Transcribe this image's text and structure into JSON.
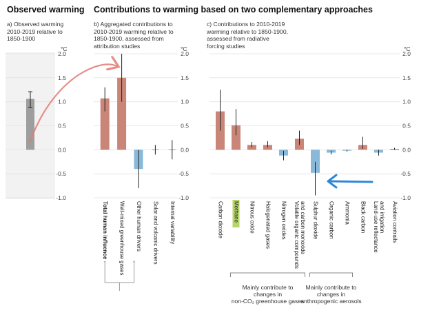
{
  "headers": {
    "observed": "Observed warming",
    "contributions": "Contributions to warming based on two complementary approaches"
  },
  "panels": {
    "a": {
      "subtitle": [
        "a) Observed warming",
        "2010-2019 relative to",
        "1850-1900"
      ]
    },
    "b": {
      "subtitle": [
        "b) Aggregated contributions to",
        "2010-2019 warming relative to",
        "1850-1900, assessed from",
        "attribution studies"
      ]
    },
    "c": {
      "subtitle": [
        "c) Contributions to 2010-2019",
        "warming relative to 1850-1900,",
        "assessed from radiative",
        "forcing studies"
      ]
    }
  },
  "axis": {
    "unit": "°C",
    "ticks": [
      "2.0",
      "1.5",
      "1.0",
      "0.5",
      "0.0",
      "-0.5",
      "-1.0"
    ]
  },
  "colors": {
    "observed": "#9e9e9e",
    "warming": "#c98577",
    "cooling": "#8ab8d8",
    "grid": "#e3e3e3",
    "annotation_red": "#e27b73",
    "annotation_blue": "#2f87d8",
    "highlight": "#a9cf4f",
    "panel_bg": "#f2f2f2"
  },
  "annotations": {
    "highlighted_label": "Methane",
    "red_arrow": "from observed warming bar to well-mixed greenhouse gases bar",
    "blue_arrow": "pointing to sulphur dioxide"
  },
  "brackets": {
    "ghg": [
      "Mainly contribute to",
      "changes in",
      "non-CO₂ greenhouse gases"
    ],
    "aerosols": [
      "Mainly contribute to",
      "changes in",
      "anthropogenic aerosols"
    ]
  },
  "chart_data": [
    {
      "type": "bar",
      "ylim": [
        -1.0,
        2.0
      ],
      "categories": [
        ""
      ],
      "series": [
        {
          "values": [
            1.06
          ],
          "err_low": [
            0.88
          ],
          "err_high": [
            1.21
          ]
        }
      ]
    },
    {
      "type": "bar",
      "ylim": [
        -1.0,
        2.0
      ],
      "categories": [
        "Total human influence",
        "Well-mixed greenhouse gases",
        "Other human drivers",
        "Solar and volcanic drivers",
        "Internal variability"
      ],
      "series": [
        {
          "values": [
            1.07,
            1.5,
            -0.4,
            0.0,
            0.0
          ],
          "err_low": [
            0.8,
            1.0,
            -0.8,
            -0.1,
            -0.2
          ],
          "err_high": [
            1.3,
            2.0,
            0.0,
            0.1,
            0.2
          ]
        }
      ]
    },
    {
      "type": "bar",
      "ylim": [
        -1.0,
        2.0
      ],
      "categories": [
        "Carbon dioxide",
        "Methane",
        "Nitrous oxide",
        "Halogenated gases",
        "Nitrogen oxides",
        "Volatile organic compounds and carbon monoxide",
        "Sulphur dioxide",
        "Organic carbon",
        "Ammonia",
        "Black carbon",
        "Land-use reflectance and irrigation",
        "Aviation contrails"
      ],
      "series": [
        {
          "values": [
            0.8,
            0.51,
            0.1,
            0.1,
            -0.12,
            0.23,
            -0.48,
            -0.06,
            -0.02,
            0.1,
            -0.06,
            0.02
          ],
          "err_low": [
            0.4,
            0.3,
            0.05,
            0.05,
            -0.22,
            0.1,
            -0.95,
            -0.1,
            -0.04,
            0.02,
            -0.12,
            0.0
          ],
          "err_high": [
            1.25,
            0.85,
            0.16,
            0.18,
            -0.02,
            0.4,
            -0.25,
            -0.02,
            0.0,
            0.27,
            0.0,
            0.04
          ]
        }
      ]
    }
  ]
}
